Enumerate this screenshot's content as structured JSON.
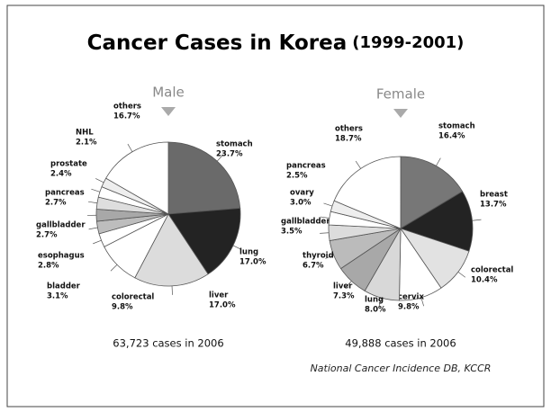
{
  "title": "Cancer Cases in Korea",
  "title_note": "(1999-2001)",
  "source": "National Cancer Incidence DB, KCCR",
  "chart_data": [
    {
      "type": "pie",
      "title": "Male",
      "note": "63,723 cases in 2006",
      "categories": [
        "stomach",
        "lung",
        "liver",
        "colorectal",
        "bladder",
        "esophagus",
        "gallbladder",
        "pancreas",
        "prostate",
        "NHL",
        "others"
      ],
      "values": [
        23.7,
        17.0,
        17.0,
        9.8,
        3.1,
        2.8,
        2.7,
        2.7,
        2.4,
        2.1,
        16.7
      ],
      "value_labels": [
        "23.7%",
        "17.0%",
        "17.0%",
        "9.8%",
        "3.1%",
        "2.8%",
        "2.7%",
        "2.7%",
        "2.4%",
        "2.1%",
        "16.7%"
      ],
      "colors": [
        "#6a6a6a",
        "#232323",
        "#dcdcdc",
        "#ffffff",
        "#ffffff",
        "#bdbdbd",
        "#a8a8a8",
        "#dedede",
        "#ffffff",
        "#eeeeee",
        "#ffffff"
      ]
    },
    {
      "type": "pie",
      "title": "Female",
      "note": "49,888 cases in 2006",
      "categories": [
        "stomach",
        "breast",
        "colorectal",
        "cervix",
        "lung",
        "liver",
        "thyroid",
        "gallbladder",
        "ovary",
        "pancreas",
        "others"
      ],
      "values": [
        16.4,
        13.7,
        10.4,
        9.8,
        8.0,
        7.3,
        6.7,
        3.5,
        3.0,
        2.5,
        18.7
      ],
      "value_labels": [
        "16.4%",
        "13.7%",
        "10.4%",
        "9.8%",
        "8.0%",
        "7.3%",
        "6.7%",
        "3.5%",
        "3.0%",
        "2.5%",
        "18.7%"
      ],
      "colors": [
        "#777777",
        "#232323",
        "#e2e2e2",
        "#ffffff",
        "#d8d8d8",
        "#a8a8a8",
        "#bbbbbb",
        "#dcdcdc",
        "#ffffff",
        "#eeeeee",
        "#ffffff"
      ]
    }
  ]
}
